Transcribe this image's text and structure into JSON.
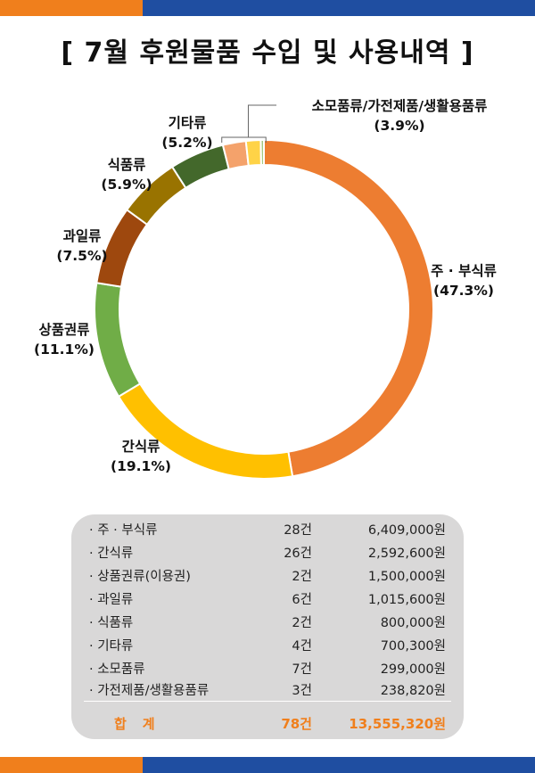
{
  "title": "[ 7월 후원물품 수입 및 사용내역 ]",
  "chart_data": {
    "type": "pie",
    "style": "donut",
    "title": "7월 후원물품 수입 및 사용내역",
    "slices": [
      {
        "name": "주 · 부식류",
        "value": 47.3,
        "label": "(47.3%)",
        "color": "#ed7d31"
      },
      {
        "name": "간식류",
        "value": 19.1,
        "label": "(19.1%)",
        "color": "#ffc000"
      },
      {
        "name": "상품권류",
        "value": 11.1,
        "label": "(11.1%)",
        "color": "#70ad47"
      },
      {
        "name": "과일류",
        "value": 7.5,
        "label": "(7.5%)",
        "color": "#9e480e"
      },
      {
        "name": "식품류",
        "value": 5.9,
        "label": "(5.9%)",
        "color": "#997300"
      },
      {
        "name": "기타류",
        "value": 5.2,
        "label": "(5.2%)",
        "color": "#43682b"
      },
      {
        "name": "소모품류",
        "value": 2.2,
        "label": "",
        "color": "#f4a26b"
      },
      {
        "name": "가전제품",
        "value": 1.4,
        "label": "",
        "color": "#ffd347"
      },
      {
        "name": "생활용품류",
        "value": 0.3,
        "label": "",
        "color": "#a5c97f"
      }
    ],
    "combined_label": {
      "name": "소모품류/가전제품/생활용품류",
      "label": "(3.9%)"
    }
  },
  "table": {
    "rows": [
      {
        "name": "· 주 · 부식류",
        "count": "28건",
        "amount": "6,409,000원"
      },
      {
        "name": "· 간식류",
        "count": "26건",
        "amount": "2,592,600원"
      },
      {
        "name": "· 상품권류(이용권)",
        "count": "2건",
        "amount": "1,500,000원"
      },
      {
        "name": "· 과일류",
        "count": "6건",
        "amount": "1,015,600원"
      },
      {
        "name": "· 식품류",
        "count": "2건",
        "amount": "800,000원"
      },
      {
        "name": "· 기타류",
        "count": "4건",
        "amount": "700,300원"
      },
      {
        "name": "· 소모품류",
        "count": "7건",
        "amount": "299,000원"
      },
      {
        "name": "· 가전제품/생활용품류",
        "count": "3건",
        "amount": "238,820원"
      }
    ],
    "total": {
      "name": "합계",
      "count": "78건",
      "amount": "13,555,320원"
    }
  }
}
